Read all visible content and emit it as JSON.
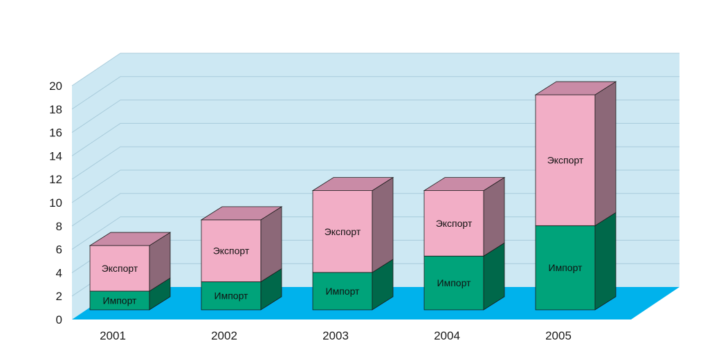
{
  "chart_data": {
    "type": "bar",
    "stacked": true,
    "three_d": true,
    "categories": [
      "2001",
      "2002",
      "2003",
      "2004",
      "2005"
    ],
    "series": [
      {
        "name": "Импорт",
        "values": [
          1.6,
          2.4,
          3.2,
          4.6,
          7.2
        ]
      },
      {
        "name": "Экспорт",
        "values": [
          3.9,
          5.3,
          7.0,
          5.6,
          11.2
        ]
      }
    ],
    "yticks": [
      "0",
      "2",
      "4",
      "6",
      "8",
      "10",
      "12",
      "14",
      "16",
      "18",
      "20"
    ],
    "ylim": [
      0,
      20
    ],
    "grid": true,
    "colors": {
      "import_front": "#00A37A",
      "import_side": "#00684A",
      "export_front": "#F2AEC6",
      "export_side": "#8C6878",
      "export_top": "#C98BA6",
      "wall": "#CDE8F3",
      "floor": "#00B2EC",
      "grid": "#A8CBDB"
    }
  }
}
